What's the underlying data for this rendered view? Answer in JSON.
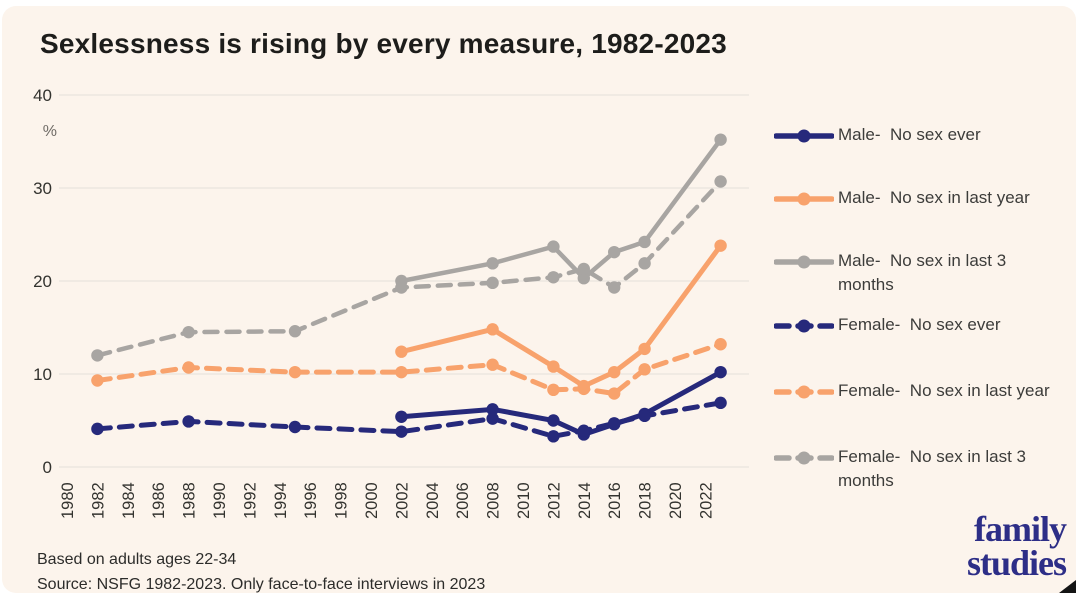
{
  "title": "Sexlessness is rising by every measure, 1982-2023",
  "footnotes": {
    "line1": "Based on adults ages 22-34",
    "line2": "Source: NSFG 1982-2023. Only face-to-face interviews in 2023"
  },
  "logo": {
    "word1": "family",
    "word2": "studies"
  },
  "colors": {
    "background": "#fcf4ec",
    "navy": "#26297b",
    "orange": "#f8a26c",
    "gray": "#a8a5a2",
    "gridline": "#ebe6e0",
    "axis_text": "#33332f",
    "percent_text": "#6f6b66"
  },
  "chart_data": {
    "type": "line",
    "title": "Sexlessness is rising by every measure, 1982-2023",
    "xlabel": "",
    "ylabel": "%",
    "ylim": [
      0,
      40
    ],
    "yticks": [
      0,
      10,
      20,
      30,
      40
    ],
    "xticks": [
      1980,
      1982,
      1984,
      1986,
      1988,
      1990,
      1992,
      1994,
      1996,
      1998,
      2000,
      2002,
      2004,
      2006,
      2008,
      2010,
      2012,
      2014,
      2016,
      2018,
      2020,
      2022
    ],
    "grid": "horizontal",
    "legend_position": "right",
    "x": [
      1982,
      1988,
      1995,
      2002,
      2008,
      2012,
      2014,
      2016,
      2018,
      2023
    ],
    "series": [
      {
        "name": "Male- No sex ever",
        "legend_label": "Male-  No sex ever",
        "color": "#26297b",
        "dashed": false,
        "values": [
          null,
          null,
          null,
          5.4,
          6.2,
          5.0,
          3.5,
          4.6,
          5.7,
          10.2
        ]
      },
      {
        "name": "Male- No sex in last year",
        "legend_label": "Male-  No sex in last year",
        "color": "#f8a26c",
        "dashed": false,
        "values": [
          null,
          null,
          null,
          12.4,
          14.8,
          10.8,
          8.7,
          10.2,
          12.7,
          23.8
        ]
      },
      {
        "name": "Male- No sex in last 3 months",
        "legend_label": "Male-  No sex in last 3\nmonths",
        "color": "#a8a5a2",
        "dashed": false,
        "values": [
          null,
          null,
          null,
          20.0,
          21.9,
          23.7,
          20.3,
          23.1,
          24.2,
          35.2
        ]
      },
      {
        "name": "Female- No sex ever",
        "legend_label": "Female-  No sex ever",
        "color": "#26297b",
        "dashed": true,
        "values": [
          4.1,
          4.9,
          4.3,
          3.8,
          5.2,
          3.3,
          3.9,
          4.7,
          5.5,
          6.9
        ]
      },
      {
        "name": "Female- No sex in last year",
        "legend_label": "Female-  No sex in last year",
        "color": "#f8a26c",
        "dashed": true,
        "values": [
          9.3,
          10.7,
          10.2,
          10.2,
          11.0,
          8.3,
          8.4,
          7.9,
          10.5,
          13.2
        ]
      },
      {
        "name": "Female- No sex in last 3 months",
        "legend_label": "Female-  No sex in last 3\nmonths",
        "color": "#a8a5a2",
        "dashed": true,
        "values": [
          12.0,
          14.5,
          14.6,
          19.3,
          19.8,
          20.4,
          21.3,
          19.3,
          21.9,
          30.7
        ]
      }
    ]
  }
}
